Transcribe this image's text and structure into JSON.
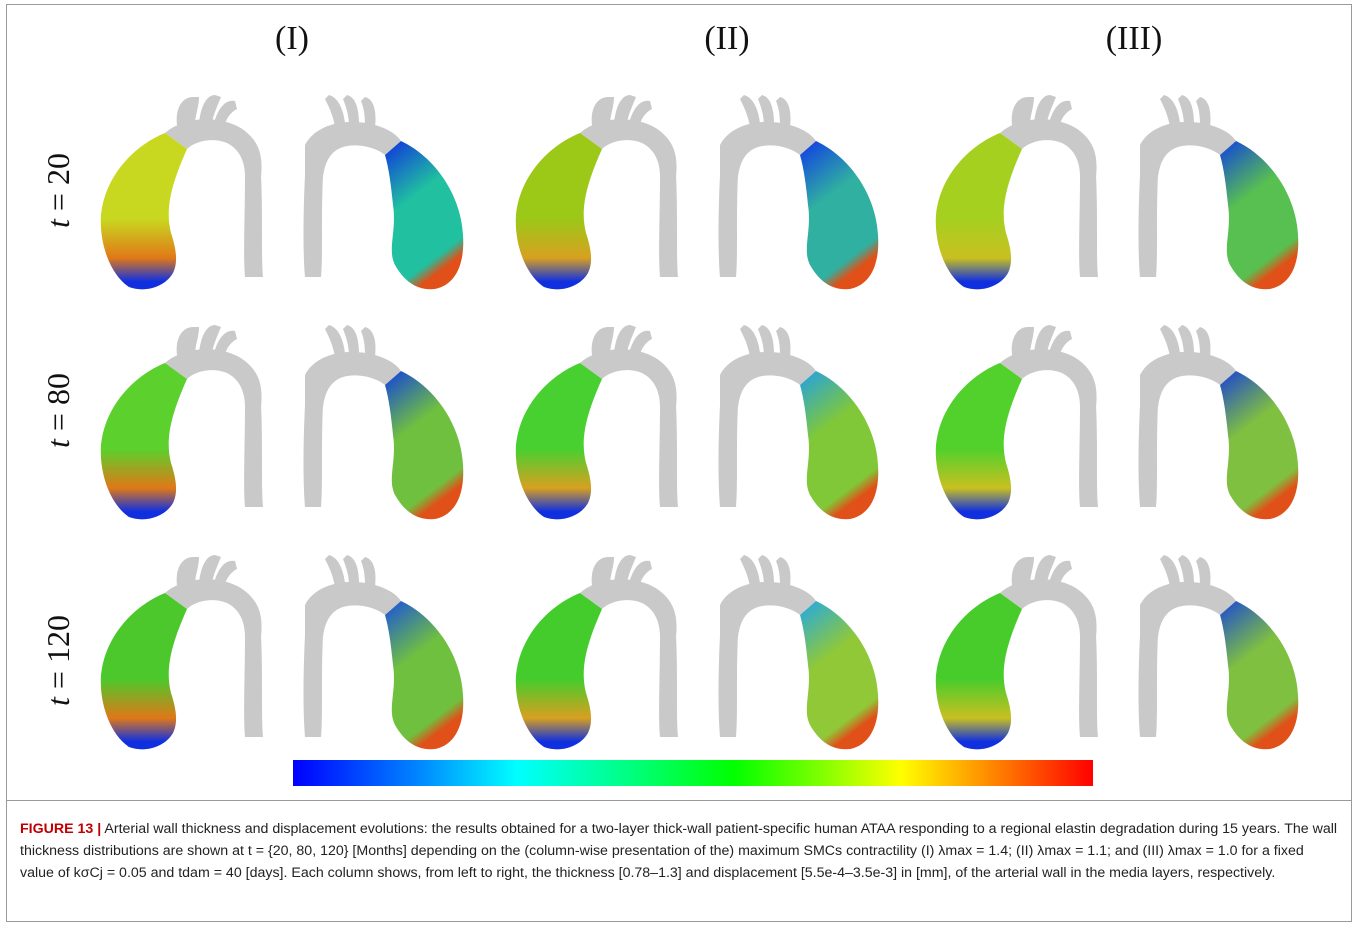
{
  "columns": [
    "(I)",
    "(II)",
    "(III)"
  ],
  "rows": [
    {
      "var": "t",
      "value": "20"
    },
    {
      "var": "t",
      "value": "80"
    },
    {
      "var": "t",
      "value": "120"
    }
  ],
  "caption": {
    "label": "FIGURE 13 |",
    "text": "Arterial wall thickness and displacement evolutions: the results obtained for a two-layer thick-wall patient-specific human ATAA responding to a regional elastin degradation during 15 years. The wall thickness distributions are shown at t = {20, 80, 120} [Months] depending on the (column-wise presentation of the) maximum SMCs contractility (I) λmax = 1.4; (II) λmax = 1.1; and (III) λmax = 1.0 for a fixed value of kσCj = 0.05 and tdam = 40 [days]. Each column shows, from left to right, the thickness [0.78–1.3] and displacement [5.5e-4–3.5e-3] in [mm], of the arterial wall in the media layers, respectively."
  },
  "colorbar": {
    "colors": [
      "#0000ff",
      "#0080ff",
      "#00ffff",
      "#00ff80",
      "#00ff00",
      "#80ff00",
      "#ffff00",
      "#ff8000",
      "#ff0000"
    ]
  },
  "panel_colors": {
    "thickness": [
      [
        "#c8d820",
        "#9cc818",
        "#a6d020"
      ],
      [
        "#5cd02c",
        "#48d030",
        "#52d02c"
      ],
      [
        "#4cc82c",
        "#44cc2c",
        "#48cc2c"
      ]
    ],
    "thickness_hot": [
      "#e07818",
      "#d8a020",
      "#c8c020"
    ],
    "displacement_top": [
      [
        "#1030e0",
        "#1038e8",
        "#1040e0"
      ],
      [
        "#1040e0",
        "#20a0e8",
        "#1840d8"
      ],
      [
        "#1850e0",
        "#20a8e8",
        "#1848d8"
      ]
    ],
    "displacement_bottom": [
      [
        "#20c0a0",
        "#30b0a0",
        "#58c050"
      ],
      [
        "#70c040",
        "#80c838",
        "#80c040"
      ],
      [
        "#70c040",
        "#90c838",
        "#80c040"
      ]
    ],
    "vessel_gray": "#c9c9c9"
  }
}
